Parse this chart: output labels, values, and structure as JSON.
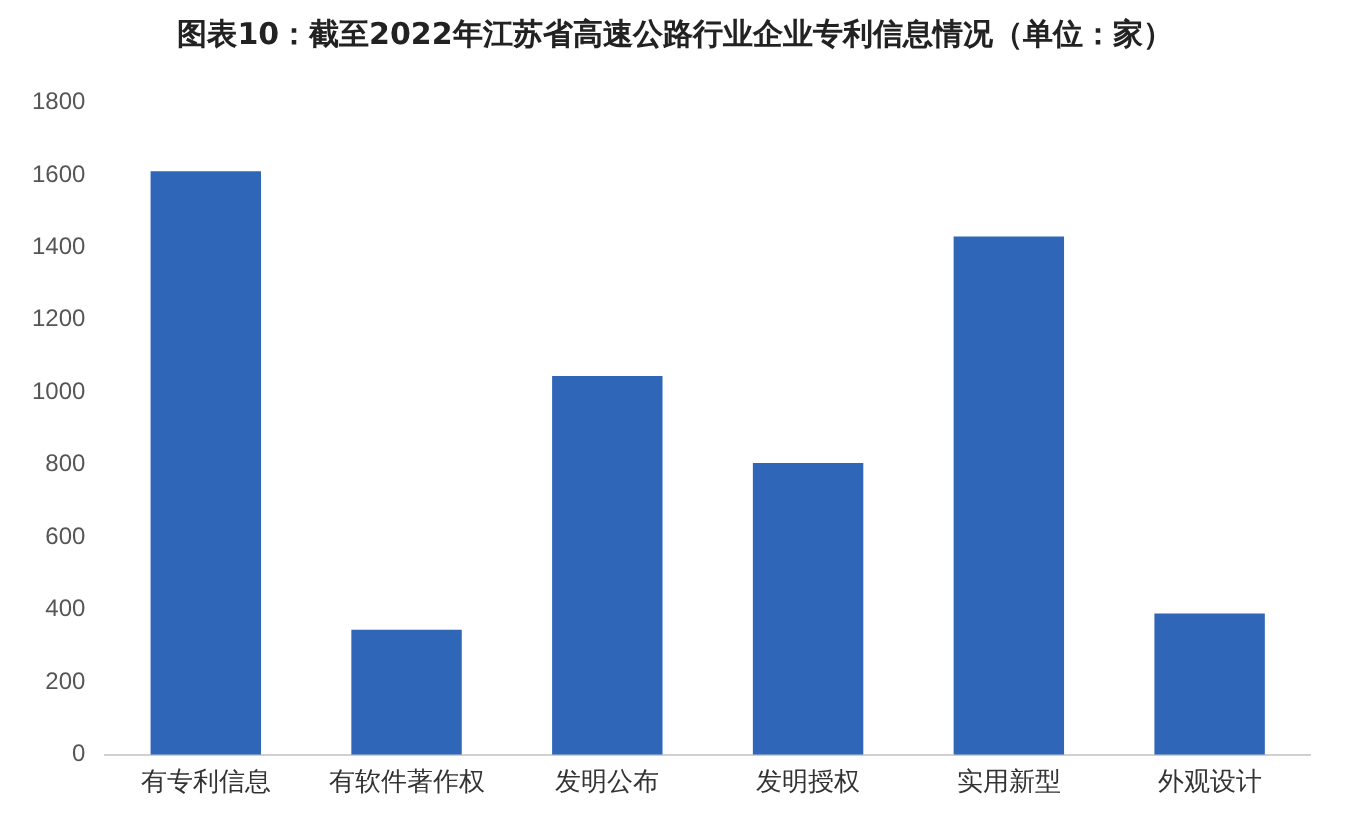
{
  "chart_data": {
    "type": "bar",
    "title": "图表10：截至2022年江苏省高速公路行业企业专利信息情况（单位：家）",
    "categories": [
      "有专利信息",
      "有软件著作权",
      "发明公布",
      "发明授权",
      "实用新型",
      "外观设计"
    ],
    "values": [
      1610,
      345,
      1045,
      805,
      1430,
      390
    ],
    "color": "#2f66b8",
    "ylim": [
      0,
      1800
    ],
    "yticks": [
      0,
      200,
      400,
      600,
      800,
      1000,
      1200,
      1400,
      1600,
      1800
    ],
    "grid": false,
    "legend": false
  }
}
